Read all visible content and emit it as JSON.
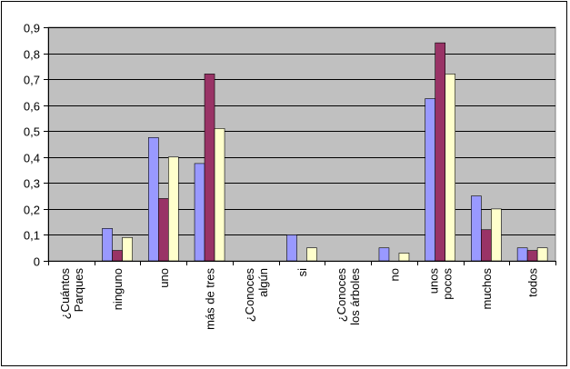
{
  "chart_data": {
    "type": "bar",
    "categories": [
      [
        "¿Cuántos",
        "Parques"
      ],
      [
        "ninguno"
      ],
      [
        "uno"
      ],
      [
        "más de tres"
      ],
      [
        "¿Conoces",
        "algún"
      ],
      [
        "si"
      ],
      [
        "¿Conoces",
        "los árboles"
      ],
      [
        "no"
      ],
      [
        "unos",
        "pocos"
      ],
      [
        "muchos"
      ],
      [
        "todos"
      ]
    ],
    "series": [
      {
        "color": "#9999FF",
        "values": [
          0,
          0.125,
          0.475,
          0.375,
          0,
          0.1,
          0,
          0.05,
          0.625,
          0.25,
          0.05
        ]
      },
      {
        "color": "#993366",
        "values": [
          0,
          0.04,
          0.24,
          0.72,
          0,
          0,
          0,
          0,
          0.84,
          0.12,
          0.04
        ]
      },
      {
        "color": "#FFFFCC",
        "values": [
          0,
          0.09,
          0.4,
          0.51,
          0,
          0.05,
          0,
          0.03,
          0.72,
          0.2,
          0.05
        ]
      }
    ],
    "ylim": [
      0,
      0.9
    ],
    "yticks": [
      "0",
      "0,1",
      "0,2",
      "0,3",
      "0,4",
      "0,5",
      "0,6",
      "0,7",
      "0,8",
      "0,9"
    ],
    "plot_background": "#C0C0C0",
    "grid": true,
    "legend": false
  }
}
